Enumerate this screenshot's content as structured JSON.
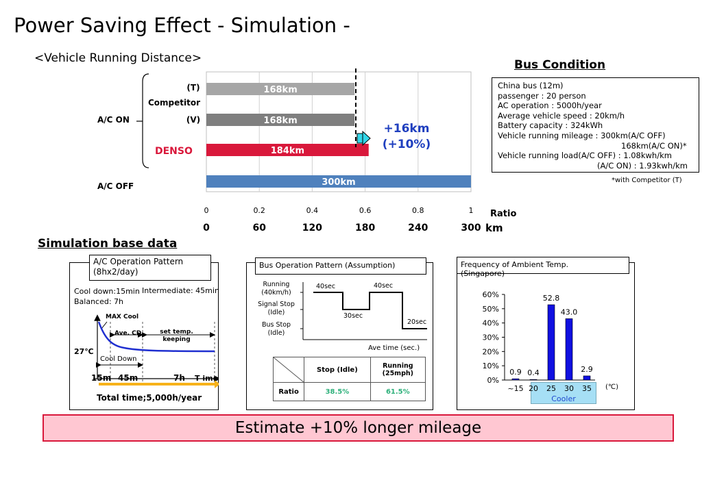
{
  "page": {
    "title": "Power Saving Effect  - Simulation -",
    "section_distance": "<Vehicle Running Distance>",
    "bus_condition_title": "Bus Condition",
    "simulation_title": "Simulation base data",
    "estimate": "Estimate +10% longer mileage"
  },
  "distance_chart": {
    "group_ac_on": "A/C ON",
    "group_ac_off": "A/C OFF",
    "competitor_label": "Competitor",
    "row_labels": [
      "(T)",
      "(V)",
      "DENSO",
      ""
    ],
    "gain_km": "+16km",
    "gain_pct": "(+10%)",
    "ratio_label": "Ratio",
    "km_unit": "km",
    "ratio_ticks": [
      "0",
      "0.2",
      "0.4",
      "0.6",
      "0.8",
      "1"
    ],
    "km_ticks": [
      "0",
      "60",
      "120",
      "180",
      "240",
      "300"
    ],
    "colors": {
      "t": "#a6a6a6",
      "v": "#7f7f7f",
      "denso": "#d9183b",
      "off": "#4f81bd",
      "denso_text": "#d9183b",
      "gain_text": "#1f3fbf"
    }
  },
  "chart_data": [
    {
      "type": "bar",
      "orientation": "horizontal",
      "categories": [
        "A/C ON Competitor (T)",
        "A/C ON Competitor (V)",
        "A/C ON DENSO",
        "A/C OFF"
      ],
      "values": [
        168,
        168,
        184,
        300
      ],
      "value_labels": [
        "168km",
        "168km",
        "184km",
        "300km"
      ],
      "xlim": [
        0,
        300
      ],
      "xlabel": "Ratio",
      "ratio_range": [
        0,
        1
      ],
      "unit": "km"
    },
    {
      "type": "bar",
      "title": "Frequency of Ambient Temp. (Singapore)",
      "categories": [
        "~15",
        "20",
        "25",
        "30",
        "35"
      ],
      "values": [
        0.9,
        0.4,
        52.8,
        43.0,
        2.9
      ],
      "value_labels": [
        "0.9",
        "0.4",
        "52.8",
        "43.0",
        "2.9"
      ],
      "ylim": [
        0,
        60
      ],
      "y_ticks": [
        "0%",
        "10%",
        "20%",
        "30%",
        "40%",
        "50%",
        "60%"
      ],
      "x_unit": "(°C)",
      "highlight_label": "Cooler",
      "highlight_range": [
        "20",
        "35"
      ]
    },
    {
      "type": "line",
      "title": "Bus Operation Pattern (Assumption)",
      "levels": [
        "Running (40km/h)",
        "Signal Stop (Idle)",
        "Bus Stop (Idle)"
      ],
      "segments": [
        {
          "state": "Running (40km/h)",
          "duration_label": "40sec"
        },
        {
          "state": "Signal Stop (Idle)",
          "duration_label": "30sec"
        },
        {
          "state": "Running (40km/h)",
          "duration_label": "40sec"
        },
        {
          "state": "Bus Stop (Idle)",
          "duration_label": "20sec"
        }
      ],
      "xlabel": "Ave time (sec.)"
    }
  ],
  "bus_condition": {
    "lines": [
      "China bus (12m)",
      "passenger : 20 person",
      "AC operation : 5000h/year",
      "Average vehicle speed : 20km/h",
      "Battery capacity : 324kWh",
      "Vehicle running mileage : 300km(A/C OFF)",
      "168km(A/C ON)*",
      "Vehicle running load(A/C OFF) : 1.08kwh/km",
      "(A/C ON) : 1.93kwh/km"
    ],
    "footnote": "*with Competitor (T)"
  },
  "ac_pattern": {
    "title_line1": "A/C Operation Pattern",
    "title_line2": "(8hx2/day)",
    "cool_down": "Cool down:15min",
    "intermediate": "Intermediate: 45min",
    "balanced": "Balanced: 7h",
    "max_cool": "MAX Cool",
    "ave_cd": "Ave. CD",
    "set_temp": "set temp.",
    "keeping": "keeping",
    "temp": "27℃",
    "cool_down_label": "Cool Down",
    "t1": "15m",
    "t2": "45m",
    "t3": "7h",
    "time": "T ime",
    "total": "Total time;5,000h/year"
  },
  "bus_pattern": {
    "title": "Bus Operation Pattern (Assumption)",
    "running_1": "Running",
    "running_2": "(40km/h)",
    "signal_1": "Signal Stop",
    "signal_2": "(Idle)",
    "busstop_1": "Bus Stop",
    "busstop_2": "(Idle)",
    "seg1": "40sec",
    "seg2": "30sec",
    "seg3": "40sec",
    "seg4": "20sec",
    "xlabel": "Ave time (sec.)",
    "table": {
      "headers": [
        "Stop (Idle)",
        "Running (25mph)"
      ],
      "row_label": "Ratio",
      "values": [
        "38.5%",
        "61.5%"
      ]
    }
  },
  "temp_freq": {
    "title_line1": "Frequency of Ambient Temp.",
    "title_line2": "(Singapore)",
    "unit": "(℃)",
    "cooler": "Cooler"
  }
}
